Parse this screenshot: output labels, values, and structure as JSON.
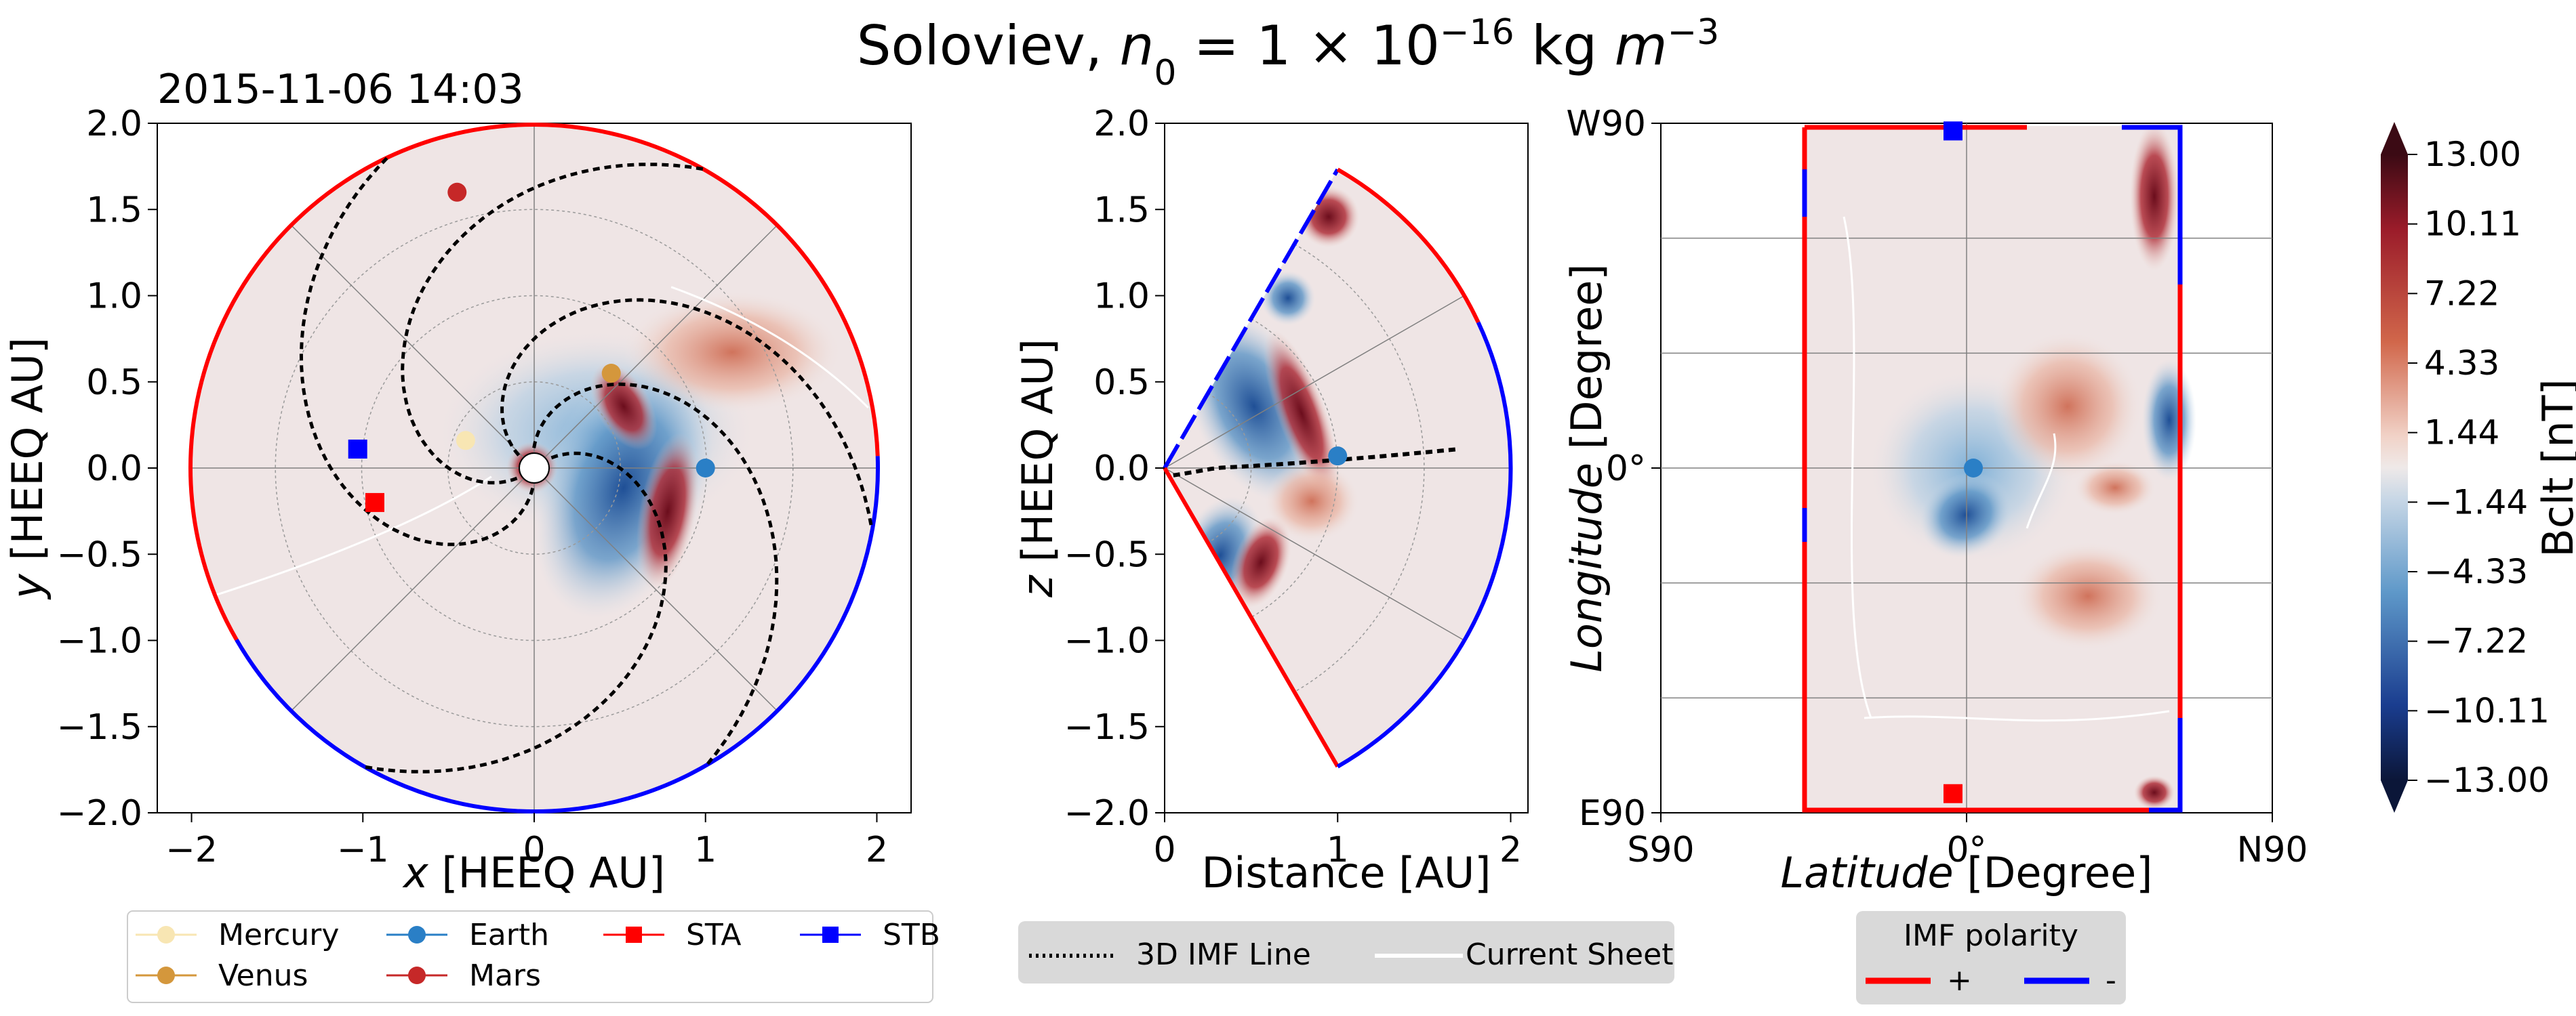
{
  "figure": {
    "title": "Soloviev,  n₀ = 1 × 10⁻¹⁶ kg m⁻³",
    "title_parts": [
      "Soloviev,  ",
      "n",
      "0",
      " = 1 × 10",
      "−16",
      " kg ",
      "m",
      "−3"
    ],
    "timestamp": "2015-11-06 14:03"
  },
  "colors": {
    "mercury": "#f8e6b3",
    "venus": "#d4973c",
    "earth": "#2a7fc6",
    "mars": "#c62828",
    "sta": "#ff0000",
    "stb": "#0000ff",
    "pos": "#ff0000",
    "neg": "#0000ff",
    "legend_bg": "#d9d9d9"
  },
  "chart_data": [
    {
      "type": "scatter",
      "name": "ecliptic-view",
      "xlabel": "x [HEEQ AU]",
      "ylabel": "y [HEEQ AU]",
      "xlabel_parts": [
        "x",
        " [HEEQ AU]"
      ],
      "ylabel_parts": [
        "y",
        " [HEEQ AU]"
      ],
      "xlim": [
        -2.2,
        2.2
      ],
      "ylim": [
        -2.0,
        2.0
      ],
      "xticks": [
        -2,
        -1,
        0,
        1,
        2
      ],
      "xtick_labels": [
        "−2",
        "−1",
        "0",
        "1",
        "2"
      ],
      "yticks": [
        2.0,
        1.5,
        1.0,
        0.5,
        0.0,
        -0.5,
        -1.0,
        -1.5,
        -2.0
      ],
      "ytick_labels": [
        "2.0",
        "1.5",
        "1.0",
        "0.5",
        "0.0",
        "−0.5",
        "−1.0",
        "−1.5",
        "−2.0"
      ],
      "points": [
        {
          "name": "Mercury",
          "x": -0.4,
          "y": 0.16,
          "marker": "circle"
        },
        {
          "name": "Venus",
          "x": 0.45,
          "y": 0.55,
          "marker": "circle"
        },
        {
          "name": "Earth",
          "x": 1.0,
          "y": 0.0,
          "marker": "circle"
        },
        {
          "name": "Mars",
          "x": -0.45,
          "y": 1.6,
          "marker": "circle"
        },
        {
          "name": "STA",
          "x": -0.93,
          "y": -0.2,
          "marker": "square"
        },
        {
          "name": "STB",
          "x": -1.03,
          "y": 0.11,
          "marker": "square"
        }
      ],
      "imf_lines_deg": [
        40,
        100,
        150,
        220,
        275
      ]
    },
    {
      "type": "scatter",
      "name": "meridional-view",
      "xlabel": "Distance [AU]",
      "ylabel": "z [HEEQ AU]",
      "ylabel_parts": [
        "z",
        " [HEEQ AU]"
      ],
      "xlim": [
        0,
        2.1
      ],
      "ylim": [
        -2.0,
        2.0
      ],
      "xticks": [
        0,
        1,
        2
      ],
      "xtick_labels": [
        "0",
        "1",
        "2"
      ],
      "yticks": [
        2.0,
        1.5,
        1.0,
        0.5,
        0.0,
        -0.5,
        -1.0,
        -1.5,
        -2.0
      ],
      "ytick_labels": [
        "2.0",
        "1.5",
        "1.0",
        "0.5",
        "0.0",
        "−0.5",
        "−1.0",
        "−1.5",
        "−2.0"
      ],
      "points": [
        {
          "name": "Earth",
          "x": 1.0,
          "y": 0.07
        }
      ],
      "sector_half_angle_deg": 60
    },
    {
      "type": "heatmap",
      "name": "latitude-longitude-view",
      "xlabel": "Latitude [Degree]",
      "ylabel": "Longitude [Degree]",
      "xlabel_parts": [
        "Latitude",
        " [Degree]"
      ],
      "ylabel_parts": [
        "Longitude",
        " [Degree]"
      ],
      "xlim": [
        -90,
        90
      ],
      "ylim": [
        -90,
        90
      ],
      "xtick_labels": [
        "S90",
        "0°",
        "N90"
      ],
      "ytick_labels": [
        "W90",
        "0°",
        "E90"
      ],
      "points": [
        {
          "name": "Earth",
          "x": 2,
          "y": 0
        },
        {
          "name": "STB",
          "x": -4,
          "y": 88
        },
        {
          "name": "STA",
          "x": -4,
          "y": -85
        }
      ]
    },
    {
      "type": "heatmap",
      "name": "colorbar",
      "label": "Bclt  [nT]",
      "range": [
        -13.0,
        13.0
      ],
      "tick_labels": [
        "13.00",
        "10.11",
        "7.22",
        "4.33",
        "1.44",
        "−1.44",
        "−4.33",
        "−7.22",
        "−10.11",
        "−13.00"
      ]
    }
  ],
  "legends": {
    "bodies": [
      "Mercury",
      "Venus",
      "Earth",
      "Mars",
      "STA",
      "STB"
    ],
    "lines": [
      "3D IMF Line",
      "Current Sheet"
    ],
    "polarity_title": "IMF polarity",
    "polarity": [
      "+",
      "-"
    ]
  }
}
